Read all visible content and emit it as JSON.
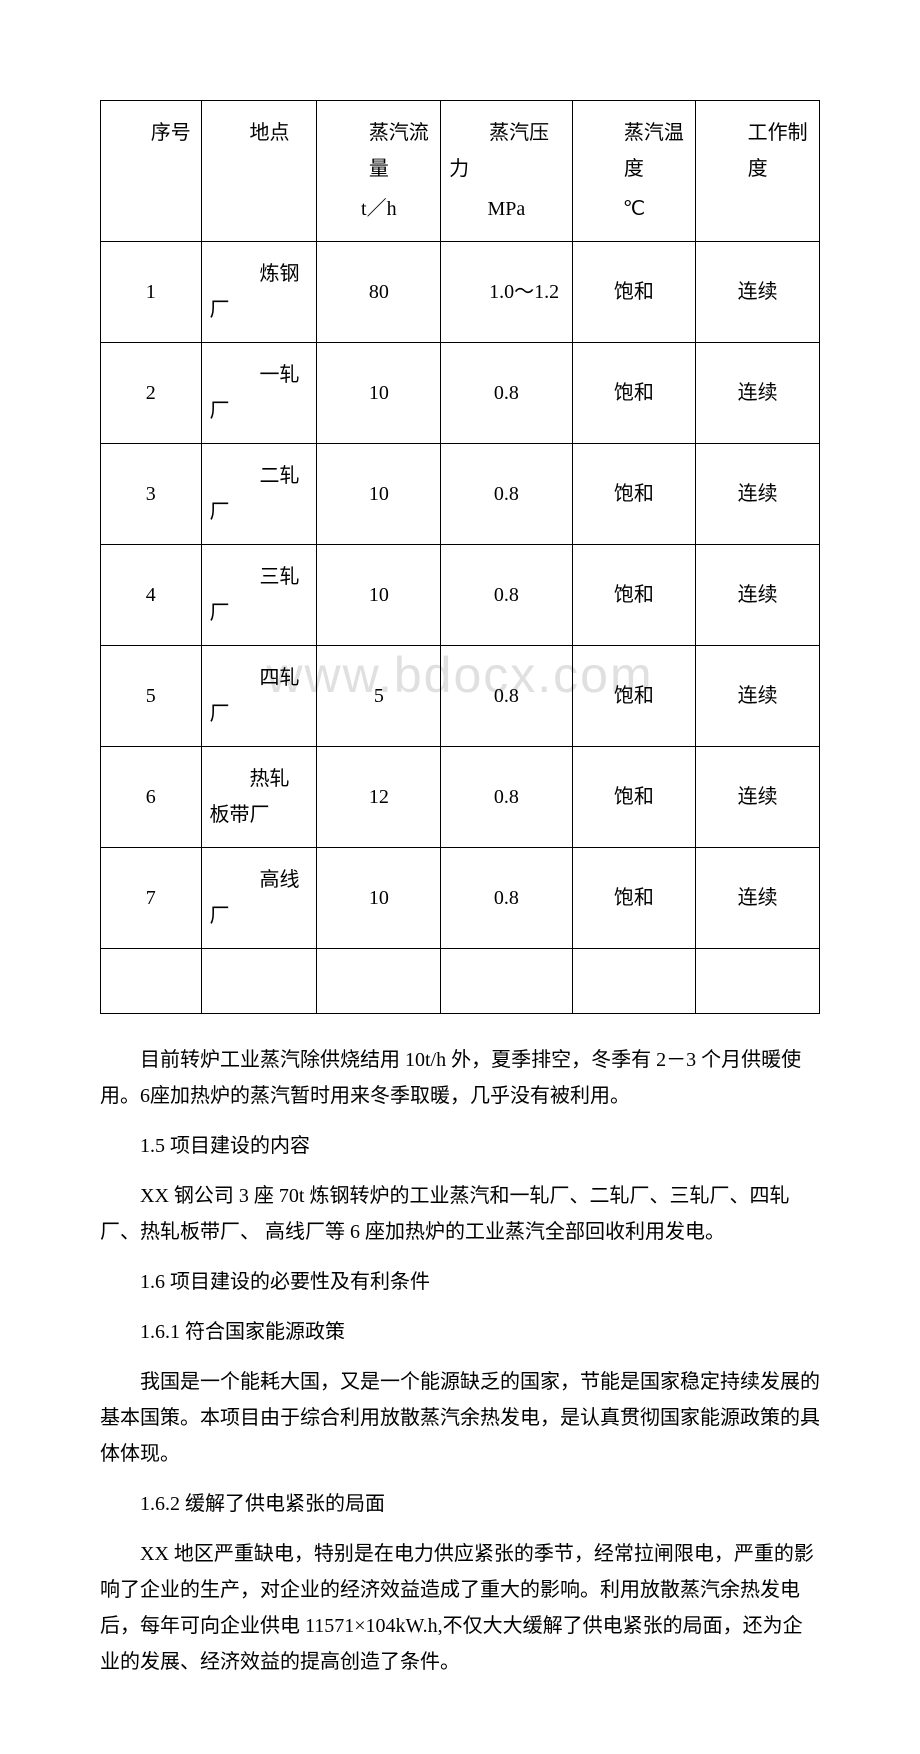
{
  "watermark": "www.bdocx.com",
  "table": {
    "headers": {
      "col1": "序号",
      "col2": "地点",
      "col3_label": "蒸汽流量",
      "col3_unit": "t／h",
      "col4_label": "蒸汽压力",
      "col4_unit": "MPa",
      "col5_label": "蒸汽温度",
      "col5_unit": "℃",
      "col6_label": "工作制度"
    },
    "rows": [
      {
        "num": "1",
        "location": "炼钢厂",
        "flow": "80",
        "pressure": "1.0～1.2",
        "temp": "饱和",
        "mode": "连续"
      },
      {
        "num": "2",
        "location": "一轧厂",
        "flow": "10",
        "pressure": "0.8",
        "temp": "饱和",
        "mode": "连续"
      },
      {
        "num": "3",
        "location": "二轧厂",
        "flow": "10",
        "pressure": "0.8",
        "temp": "饱和",
        "mode": "连续"
      },
      {
        "num": "4",
        "location": "三轧厂",
        "flow": "10",
        "pressure": "0.8",
        "temp": "饱和",
        "mode": "连续"
      },
      {
        "num": "5",
        "location": "四轧厂",
        "flow": "5",
        "pressure": "0.8",
        "temp": "饱和",
        "mode": "连续"
      },
      {
        "num": "6",
        "location": "热轧板带厂",
        "flow": "12",
        "pressure": "0.8",
        "temp": "饱和",
        "mode": "连续"
      },
      {
        "num": "7",
        "location": "高线厂",
        "flow": "10",
        "pressure": "0.8",
        "temp": "饱和",
        "mode": "连续"
      }
    ]
  },
  "paragraphs": {
    "p1": "目前转炉工业蒸汽除供烧结用 10t/h 外，夏季排空，冬季有 2－3 个月供暖使用。6座加热炉的蒸汽暂时用来冬季取暖，几乎没有被利用。",
    "s15_title": "1.5 项目建设的内容",
    "s15_body": "XX 钢公司 3 座 70t 炼钢转炉的工业蒸汽和一轧厂、二轧厂、三轧厂、四轧厂、热轧板带厂、 高线厂等 6 座加热炉的工业蒸汽全部回收利用发电。",
    "s16_title": "1.6 项目建设的必要性及有利条件",
    "s161_title": "1.6.1 符合国家能源政策",
    "s161_body": "我国是一个能耗大国，又是一个能源缺乏的国家，节能是国家稳定持续发展的基本国策。本项目由于综合利用放散蒸汽余热发电，是认真贯彻国家能源政策的具体体现。",
    "s162_title": "1.6.2 缓解了供电紧张的局面",
    "s162_body": "XX 地区严重缺电，特别是在电力供应紧张的季节，经常拉闸限电，严重的影响了企业的生产，对企业的经济效益造成了重大的影响。利用放散蒸汽余热发电后，每年可向企业供电 11571×104kW.h,不仅大大缓解了供电紧张的局面，还为企业的发展、经济效益的提高创造了条件。"
  }
}
